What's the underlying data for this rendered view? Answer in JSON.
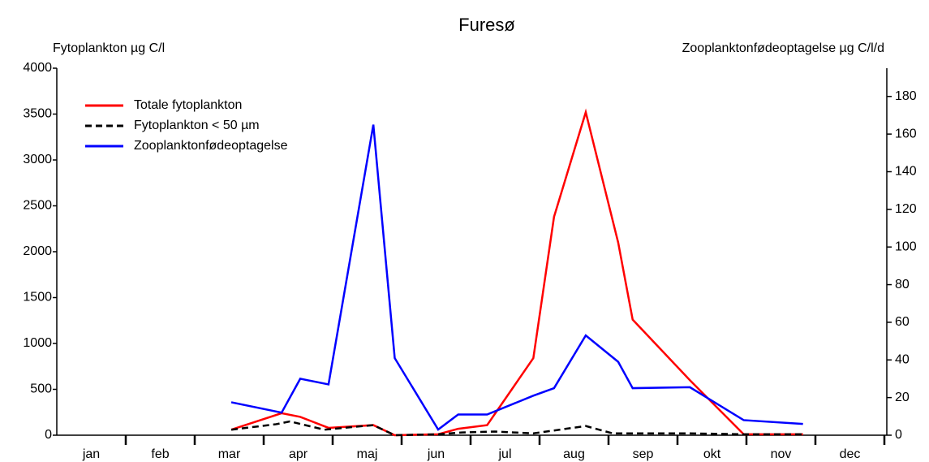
{
  "chart_data": {
    "type": "line",
    "title": "Furesø",
    "ylabel": "Fytoplankton µg C/l",
    "y2label": "Zooplanktonfødeoptagelse µg C/l/d",
    "xlim": [
      0,
      12
    ],
    "xticks": [
      {
        "value": 0.5,
        "label": "jan"
      },
      {
        "value": 1.5,
        "label": "feb"
      },
      {
        "value": 2.5,
        "label": "mar"
      },
      {
        "value": 3.5,
        "label": "apr"
      },
      {
        "value": 4.5,
        "label": "maj"
      },
      {
        "value": 5.5,
        "label": "jun"
      },
      {
        "value": 6.5,
        "label": "jul"
      },
      {
        "value": 7.5,
        "label": "aug"
      },
      {
        "value": 8.5,
        "label": "sep"
      },
      {
        "value": 9.5,
        "label": "okt"
      },
      {
        "value": 10.5,
        "label": "nov"
      },
      {
        "value": 11.5,
        "label": "dec"
      }
    ],
    "ylim": [
      0,
      4000
    ],
    "yticks": [
      0,
      500,
      1000,
      1500,
      2000,
      2500,
      3000,
      3500,
      4000
    ],
    "y2lim": [
      0,
      195
    ],
    "y2ticks": [
      0,
      20,
      40,
      60,
      80,
      100,
      120,
      140,
      160,
      180
    ],
    "legend": "upper left",
    "series": [
      {
        "name": "Totale fytoplankton",
        "color": "#ff0000",
        "dashed": false,
        "x": [
          2.53,
          3.26,
          3.53,
          3.94,
          4.59,
          4.9,
          5.53,
          5.82,
          6.24,
          6.91,
          7.21,
          7.67,
          8.14,
          8.35,
          9.18,
          9.96,
          10.82
        ],
        "values": [
          60,
          240,
          200,
          80,
          110,
          0,
          10,
          70,
          110,
          840,
          2380,
          3520,
          2100,
          1260,
          600,
          10,
          10
        ]
      },
      {
        "name": "Fytoplankton < 50 µm",
        "color": "#000000",
        "dashed": true,
        "x": [
          2.53,
          3.18,
          3.38,
          3.88,
          4.59,
          4.9,
          5.53,
          5.88,
          6.35,
          6.91,
          7.29,
          7.67,
          8.06,
          9.18,
          9.96,
          10.47,
          10.82
        ],
        "values": [
          60,
          120,
          150,
          60,
          110,
          0,
          10,
          30,
          40,
          20,
          60,
          100,
          20,
          20,
          10,
          10,
          10
        ]
      },
      {
        "name": "Zooplanktonfødeoptagelse",
        "color": "#0000ff",
        "dashed": false,
        "axis": "y2",
        "x": [
          2.53,
          3.26,
          3.53,
          3.94,
          4.59,
          4.9,
          5.53,
          5.82,
          6.24,
          6.91,
          7.21,
          7.67,
          8.14,
          8.35,
          9.18,
          9.96,
          10.82
        ],
        "values": [
          17.5,
          12,
          30,
          27,
          165,
          41,
          3,
          11,
          11,
          21,
          25,
          53,
          39,
          25,
          25.5,
          8,
          6
        ]
      }
    ]
  }
}
